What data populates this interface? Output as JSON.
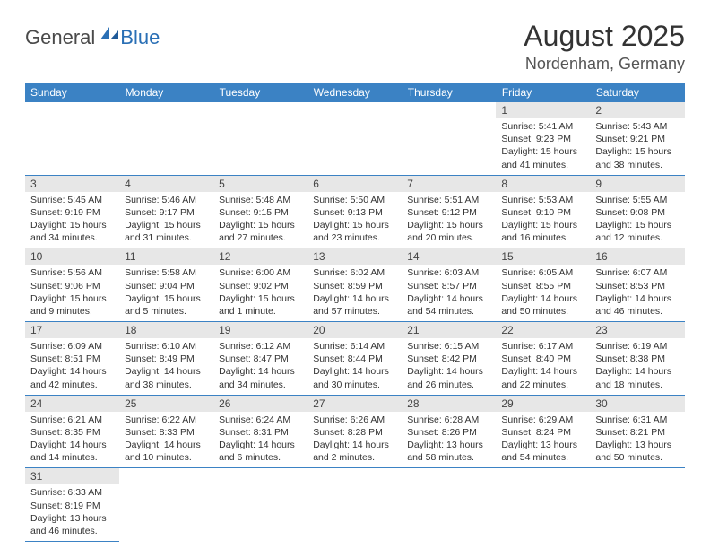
{
  "logo": {
    "text1": "General",
    "text2": "Blue"
  },
  "title": "August 2025",
  "location": "Nordenham, Germany",
  "header_bg": "#3b82c4",
  "dayname_row_bg": "#e7e7e7",
  "border_color": "#3b82c4",
  "text_color": "#333333",
  "weekdays": [
    "Sunday",
    "Monday",
    "Tuesday",
    "Wednesday",
    "Thursday",
    "Friday",
    "Saturday"
  ],
  "weeks": [
    [
      null,
      null,
      null,
      null,
      null,
      {
        "n": "1",
        "sunrise": "Sunrise: 5:41 AM",
        "sunset": "Sunset: 9:23 PM",
        "day": "Daylight: 15 hours and 41 minutes."
      },
      {
        "n": "2",
        "sunrise": "Sunrise: 5:43 AM",
        "sunset": "Sunset: 9:21 PM",
        "day": "Daylight: 15 hours and 38 minutes."
      }
    ],
    [
      {
        "n": "3",
        "sunrise": "Sunrise: 5:45 AM",
        "sunset": "Sunset: 9:19 PM",
        "day": "Daylight: 15 hours and 34 minutes."
      },
      {
        "n": "4",
        "sunrise": "Sunrise: 5:46 AM",
        "sunset": "Sunset: 9:17 PM",
        "day": "Daylight: 15 hours and 31 minutes."
      },
      {
        "n": "5",
        "sunrise": "Sunrise: 5:48 AM",
        "sunset": "Sunset: 9:15 PM",
        "day": "Daylight: 15 hours and 27 minutes."
      },
      {
        "n": "6",
        "sunrise": "Sunrise: 5:50 AM",
        "sunset": "Sunset: 9:13 PM",
        "day": "Daylight: 15 hours and 23 minutes."
      },
      {
        "n": "7",
        "sunrise": "Sunrise: 5:51 AM",
        "sunset": "Sunset: 9:12 PM",
        "day": "Daylight: 15 hours and 20 minutes."
      },
      {
        "n": "8",
        "sunrise": "Sunrise: 5:53 AM",
        "sunset": "Sunset: 9:10 PM",
        "day": "Daylight: 15 hours and 16 minutes."
      },
      {
        "n": "9",
        "sunrise": "Sunrise: 5:55 AM",
        "sunset": "Sunset: 9:08 PM",
        "day": "Daylight: 15 hours and 12 minutes."
      }
    ],
    [
      {
        "n": "10",
        "sunrise": "Sunrise: 5:56 AM",
        "sunset": "Sunset: 9:06 PM",
        "day": "Daylight: 15 hours and 9 minutes."
      },
      {
        "n": "11",
        "sunrise": "Sunrise: 5:58 AM",
        "sunset": "Sunset: 9:04 PM",
        "day": "Daylight: 15 hours and 5 minutes."
      },
      {
        "n": "12",
        "sunrise": "Sunrise: 6:00 AM",
        "sunset": "Sunset: 9:02 PM",
        "day": "Daylight: 15 hours and 1 minute."
      },
      {
        "n": "13",
        "sunrise": "Sunrise: 6:02 AM",
        "sunset": "Sunset: 8:59 PM",
        "day": "Daylight: 14 hours and 57 minutes."
      },
      {
        "n": "14",
        "sunrise": "Sunrise: 6:03 AM",
        "sunset": "Sunset: 8:57 PM",
        "day": "Daylight: 14 hours and 54 minutes."
      },
      {
        "n": "15",
        "sunrise": "Sunrise: 6:05 AM",
        "sunset": "Sunset: 8:55 PM",
        "day": "Daylight: 14 hours and 50 minutes."
      },
      {
        "n": "16",
        "sunrise": "Sunrise: 6:07 AM",
        "sunset": "Sunset: 8:53 PM",
        "day": "Daylight: 14 hours and 46 minutes."
      }
    ],
    [
      {
        "n": "17",
        "sunrise": "Sunrise: 6:09 AM",
        "sunset": "Sunset: 8:51 PM",
        "day": "Daylight: 14 hours and 42 minutes."
      },
      {
        "n": "18",
        "sunrise": "Sunrise: 6:10 AM",
        "sunset": "Sunset: 8:49 PM",
        "day": "Daylight: 14 hours and 38 minutes."
      },
      {
        "n": "19",
        "sunrise": "Sunrise: 6:12 AM",
        "sunset": "Sunset: 8:47 PM",
        "day": "Daylight: 14 hours and 34 minutes."
      },
      {
        "n": "20",
        "sunrise": "Sunrise: 6:14 AM",
        "sunset": "Sunset: 8:44 PM",
        "day": "Daylight: 14 hours and 30 minutes."
      },
      {
        "n": "21",
        "sunrise": "Sunrise: 6:15 AM",
        "sunset": "Sunset: 8:42 PM",
        "day": "Daylight: 14 hours and 26 minutes."
      },
      {
        "n": "22",
        "sunrise": "Sunrise: 6:17 AM",
        "sunset": "Sunset: 8:40 PM",
        "day": "Daylight: 14 hours and 22 minutes."
      },
      {
        "n": "23",
        "sunrise": "Sunrise: 6:19 AM",
        "sunset": "Sunset: 8:38 PM",
        "day": "Daylight: 14 hours and 18 minutes."
      }
    ],
    [
      {
        "n": "24",
        "sunrise": "Sunrise: 6:21 AM",
        "sunset": "Sunset: 8:35 PM",
        "day": "Daylight: 14 hours and 14 minutes."
      },
      {
        "n": "25",
        "sunrise": "Sunrise: 6:22 AM",
        "sunset": "Sunset: 8:33 PM",
        "day": "Daylight: 14 hours and 10 minutes."
      },
      {
        "n": "26",
        "sunrise": "Sunrise: 6:24 AM",
        "sunset": "Sunset: 8:31 PM",
        "day": "Daylight: 14 hours and 6 minutes."
      },
      {
        "n": "27",
        "sunrise": "Sunrise: 6:26 AM",
        "sunset": "Sunset: 8:28 PM",
        "day": "Daylight: 14 hours and 2 minutes."
      },
      {
        "n": "28",
        "sunrise": "Sunrise: 6:28 AM",
        "sunset": "Sunset: 8:26 PM",
        "day": "Daylight: 13 hours and 58 minutes."
      },
      {
        "n": "29",
        "sunrise": "Sunrise: 6:29 AM",
        "sunset": "Sunset: 8:24 PM",
        "day": "Daylight: 13 hours and 54 minutes."
      },
      {
        "n": "30",
        "sunrise": "Sunrise: 6:31 AM",
        "sunset": "Sunset: 8:21 PM",
        "day": "Daylight: 13 hours and 50 minutes."
      }
    ],
    [
      {
        "n": "31",
        "sunrise": "Sunrise: 6:33 AM",
        "sunset": "Sunset: 8:19 PM",
        "day": "Daylight: 13 hours and 46 minutes."
      },
      null,
      null,
      null,
      null,
      null,
      null
    ]
  ]
}
